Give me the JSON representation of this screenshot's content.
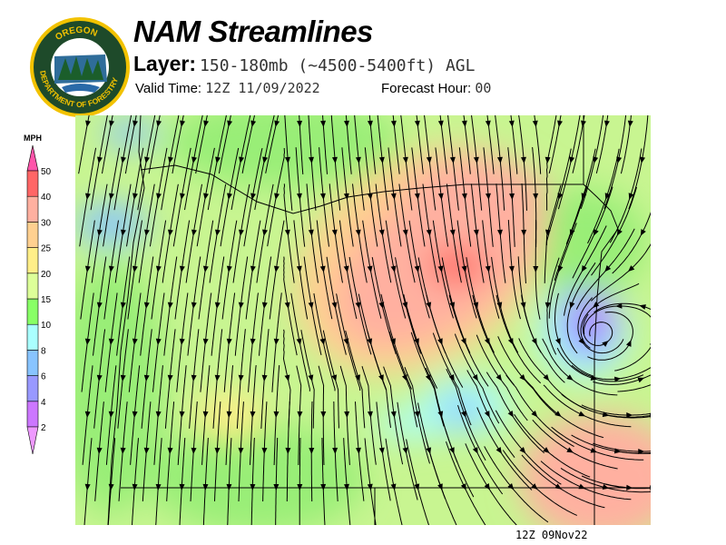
{
  "header": {
    "title": "NAM Streamlines",
    "layer_label": "Layer:",
    "layer_value": "150-180mb (~4500-5400ft) AGL",
    "valid_label": "Valid Time:",
    "valid_value": "12Z 11/09/2022",
    "forecast_label": "Forecast Hour:",
    "forecast_value": "00"
  },
  "logo": {
    "text_top": "OREGON",
    "text_bottom": "DEPARTMENT OF FORESTRY"
  },
  "colorbar": {
    "unit": "MPH",
    "levels": [
      "2",
      "4",
      "6",
      "8",
      "10",
      "15",
      "20",
      "25",
      "30",
      "40",
      "50"
    ],
    "colors": [
      "#cc77ff",
      "#9999ff",
      "#88c4ff",
      "#aaffff",
      "#88ff66",
      "#ddff99",
      "#ffee88",
      "#ffd090",
      "#ffb0a0",
      "#ff6666"
    ],
    "below_color": "#ee99ff",
    "above_color": "#ff55aa"
  },
  "map": {
    "stamp": "12Z 09Nov22"
  }
}
